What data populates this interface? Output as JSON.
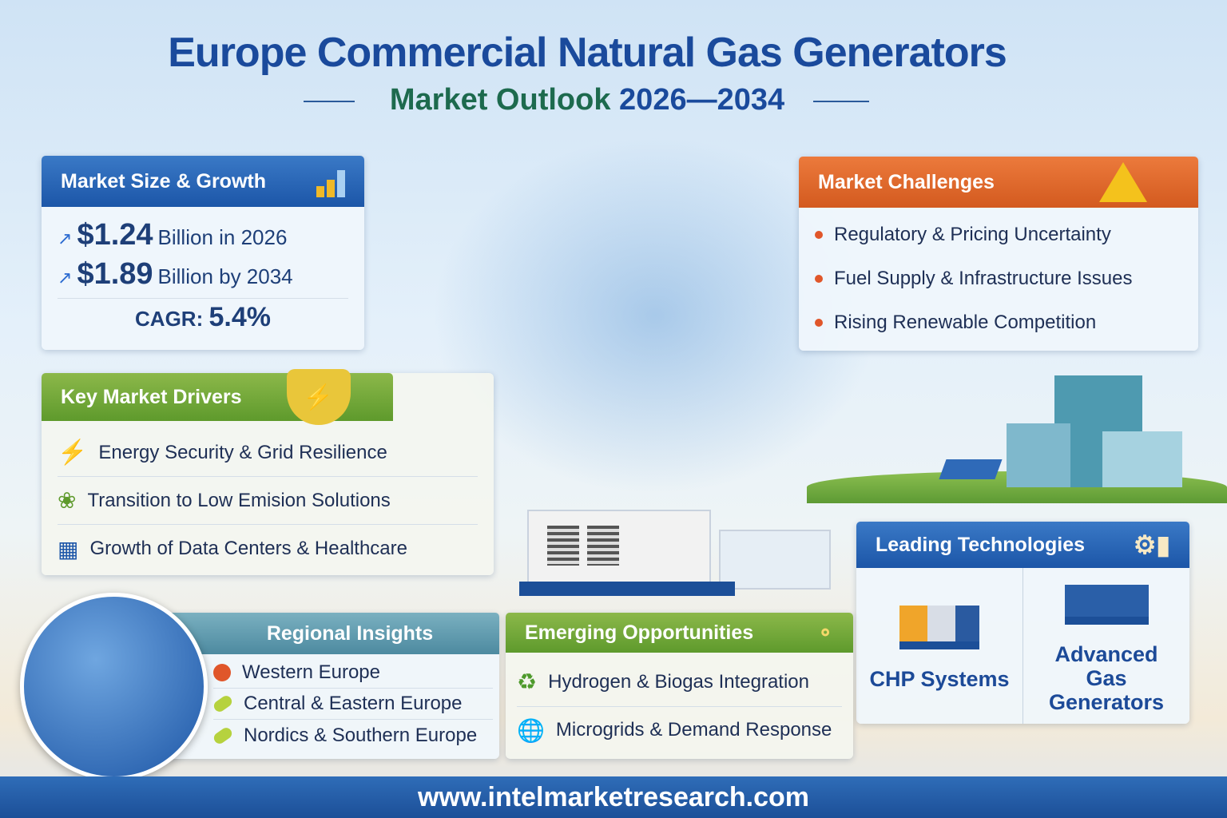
{
  "title": "Europe Commercial Natural Gas Generators",
  "subtitle": {
    "text": "Market Outlook",
    "years": "2026—2034"
  },
  "market_size": {
    "heading": "Market Size & Growth",
    "rows": [
      {
        "value": "$1.24",
        "text": "Billion in 2026"
      },
      {
        "value": "$1.89",
        "text": "Billion by 2034"
      }
    ],
    "cagr_label": "CAGR:",
    "cagr_value": "5.4%"
  },
  "challenges": {
    "heading": "Market Challenges",
    "items": [
      "Regulatory & Pricing Uncertainty",
      "Fuel Supply & Infrastructure Issues",
      "Rising Renewable Competition"
    ]
  },
  "drivers": {
    "heading": "Key Market Drivers",
    "items": [
      "Energy Security & Grid Resilience",
      "Transition to Low Emision Solutions",
      "Growth of Data Centers & Healthcare"
    ]
  },
  "technologies": {
    "heading": "Leading Technologies",
    "items": [
      "CHP Systems",
      "Advanced Gas Generators"
    ]
  },
  "regional": {
    "heading": "Regional Insights",
    "items": [
      "Western Europe",
      "Central & Eastern Europe",
      "Nordics & Southern Europe"
    ]
  },
  "opportunities": {
    "heading": "Emerging Opportunities",
    "items": [
      "Hydrogen & Biogas Integration",
      "Microgrids & Demand Response"
    ]
  },
  "footer": "www.intelmarketresearch.com",
  "colors": {
    "brand_blue": "#1a4a9c",
    "green": "#1d6a4e",
    "orange": "#d35a1f"
  }
}
